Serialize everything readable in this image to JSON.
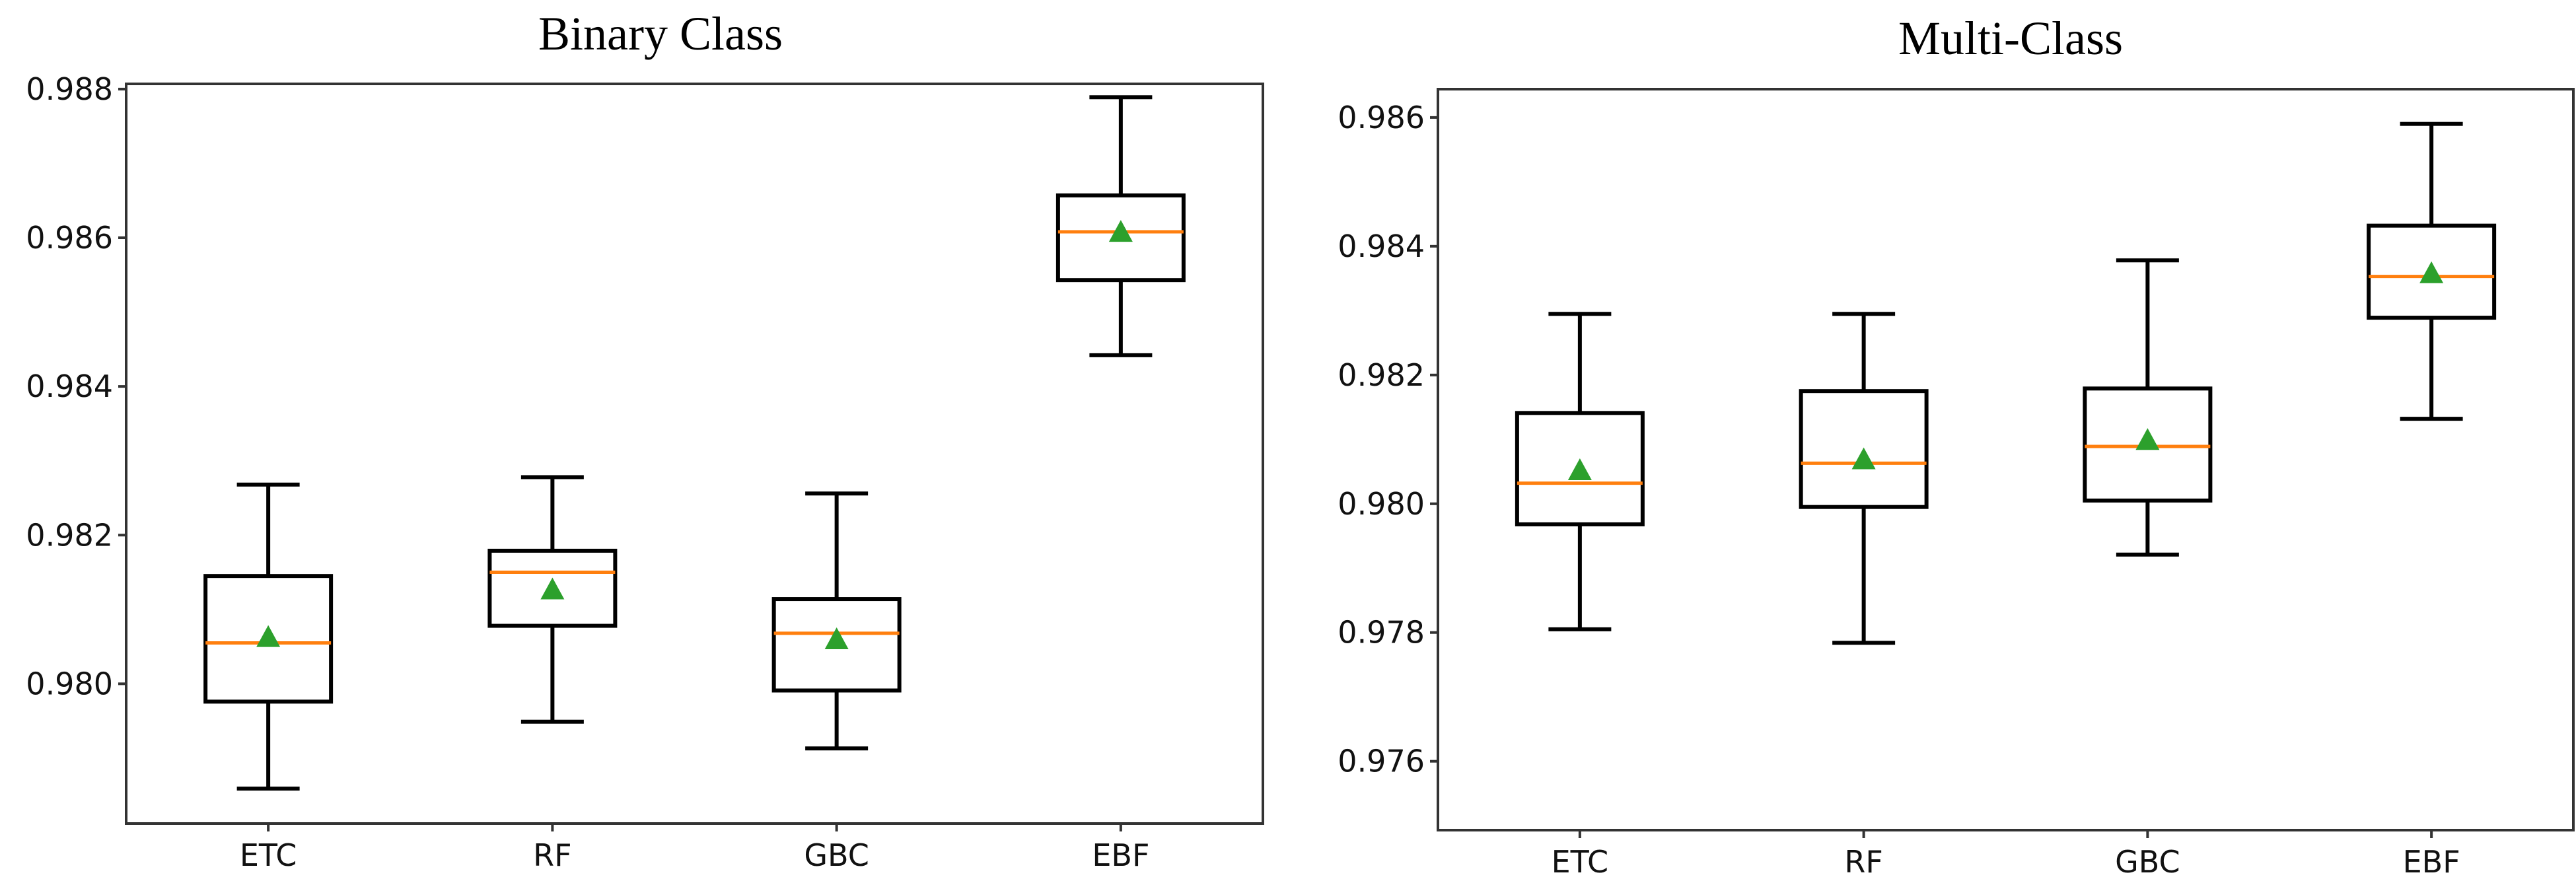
{
  "chart_data": [
    {
      "type": "box",
      "title": "Binary Class",
      "xlabel": "",
      "ylabel": "",
      "categories": [
        "ETC",
        "RF",
        "GBC",
        "EBF"
      ],
      "ylim": [
        0.97812,
        0.98807
      ],
      "yticks": [
        0.98,
        0.982,
        0.984,
        0.986,
        0.988
      ],
      "ytick_labels": [
        "0.980",
        "0.982",
        "0.984",
        "0.986",
        "0.988"
      ],
      "grid": false,
      "boxes": [
        {
          "whisker_low": 0.97859,
          "q1": 0.97976,
          "median": 0.98055,
          "q3": 0.98145,
          "whisker_high": 0.98268,
          "mean": 0.98062
        },
        {
          "whisker_low": 0.97949,
          "q1": 0.98078,
          "median": 0.9815,
          "q3": 0.98179,
          "whisker_high": 0.98278,
          "mean": 0.98126
        },
        {
          "whisker_low": 0.97913,
          "q1": 0.97991,
          "median": 0.98068,
          "q3": 0.98114,
          "whisker_high": 0.98256,
          "mean": 0.98059
        },
        {
          "whisker_low": 0.98442,
          "q1": 0.98543,
          "median": 0.98608,
          "q3": 0.98657,
          "whisker_high": 0.98789,
          "mean": 0.98607
        }
      ]
    },
    {
      "type": "box",
      "title": "Multi-Class",
      "xlabel": "",
      "ylabel": "",
      "categories": [
        "ETC",
        "RF",
        "GBC",
        "EBF"
      ],
      "ylim": [
        0.97493,
        0.98644
      ],
      "yticks": [
        0.976,
        0.978,
        0.98,
        0.982,
        0.984,
        0.986
      ],
      "ytick_labels": [
        "0.976",
        "0.978",
        "0.980",
        "0.982",
        "0.984",
        "0.986"
      ],
      "grid": false,
      "boxes": [
        {
          "whisker_low": 0.97805,
          "q1": 0.97968,
          "median": 0.98032,
          "q3": 0.98141,
          "whisker_high": 0.98295,
          "mean": 0.98051
        },
        {
          "whisker_low": 0.97784,
          "q1": 0.97995,
          "median": 0.98063,
          "q3": 0.98175,
          "whisker_high": 0.98295,
          "mean": 0.98068
        },
        {
          "whisker_low": 0.97921,
          "q1": 0.98005,
          "median": 0.98089,
          "q3": 0.98179,
          "whisker_high": 0.98378,
          "mean": 0.98098
        },
        {
          "whisker_low": 0.98132,
          "q1": 0.98289,
          "median": 0.98353,
          "q3": 0.98432,
          "whisker_high": 0.9859,
          "mean": 0.98357
        }
      ]
    }
  ],
  "colors": {
    "box": "#000000",
    "median": "#ff7f0e",
    "mean": "#2ca02c"
  }
}
